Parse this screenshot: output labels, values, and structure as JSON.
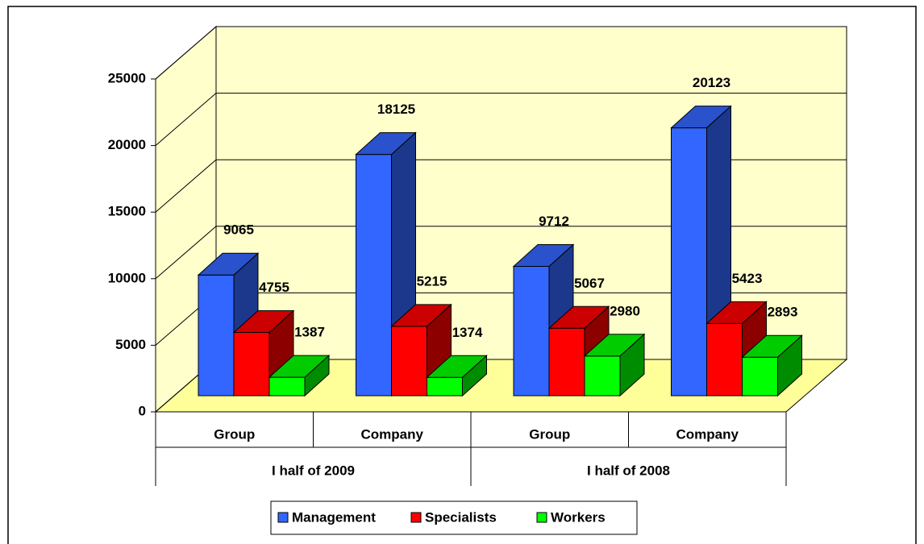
{
  "chart_data": {
    "type": "bar3d",
    "categories": [
      "Group",
      "Company",
      "Group",
      "Company"
    ],
    "groups": [
      "I half of 2009",
      "I half of 2008"
    ],
    "series": [
      {
        "name": "Management",
        "color": "#3366ff",
        "values": [
          9065,
          18125,
          9712,
          20123
        ]
      },
      {
        "name": "Specialists",
        "color": "#ff0000",
        "values": [
          4755,
          5215,
          5067,
          5423
        ]
      },
      {
        "name": "Workers",
        "color": "#00ff00",
        "values": [
          1387,
          1374,
          2980,
          2893
        ]
      }
    ],
    "ylim": [
      0,
      25000
    ],
    "yticks": [
      0,
      5000,
      10000,
      15000,
      20000,
      25000
    ],
    "grid": true,
    "legend": "bottom"
  }
}
